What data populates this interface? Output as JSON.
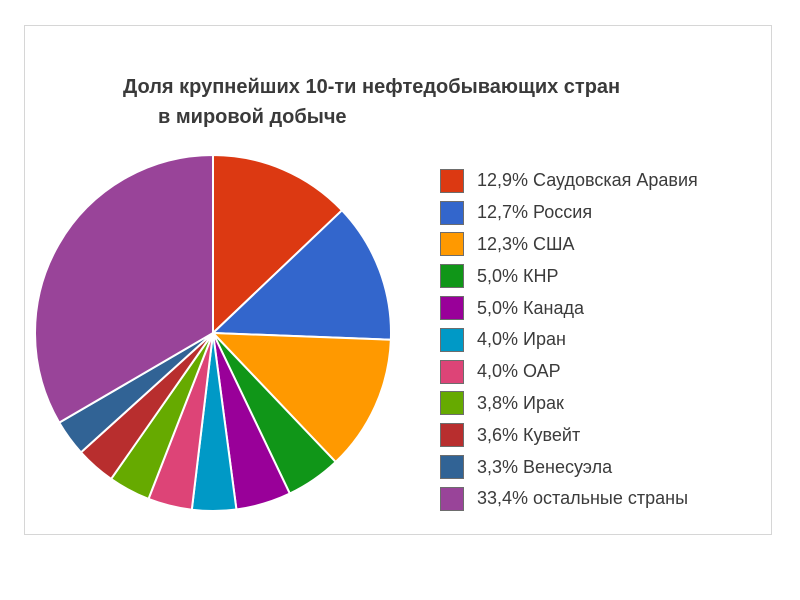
{
  "chart_data": {
    "type": "pie",
    "title": "Доля крупнейших 10-ти нефтедобывающих стран",
    "title_line2": "в мировой добыче",
    "legend_position": "right",
    "slices": [
      {
        "label": "12,9% Саудовская Аравия",
        "value": 12.9,
        "color": "#dc3912"
      },
      {
        "label": "12,7% Россия",
        "value": 12.7,
        "color": "#3366cc"
      },
      {
        "label": "12,3% США",
        "value": 12.3,
        "color": "#ff9900"
      },
      {
        "label": "5,0% КНР",
        "value": 5.0,
        "color": "#109618"
      },
      {
        "label": "5,0% Канада",
        "value": 5.0,
        "color": "#990099"
      },
      {
        "label": "4,0% Иран",
        "value": 4.0,
        "color": "#0099c6"
      },
      {
        "label": "4,0% ОАР",
        "value": 4.0,
        "color": "#dd4477"
      },
      {
        "label": "3,8% Ирак",
        "value": 3.8,
        "color": "#66aa00"
      },
      {
        "label": "3,6% Кувейт",
        "value": 3.6,
        "color": "#b82e2e"
      },
      {
        "label": "3,3% Венесуэла",
        "value": 3.3,
        "color": "#316395"
      },
      {
        "label": "33,4% остальные страны",
        "value": 33.4,
        "color": "#994499"
      }
    ]
  }
}
